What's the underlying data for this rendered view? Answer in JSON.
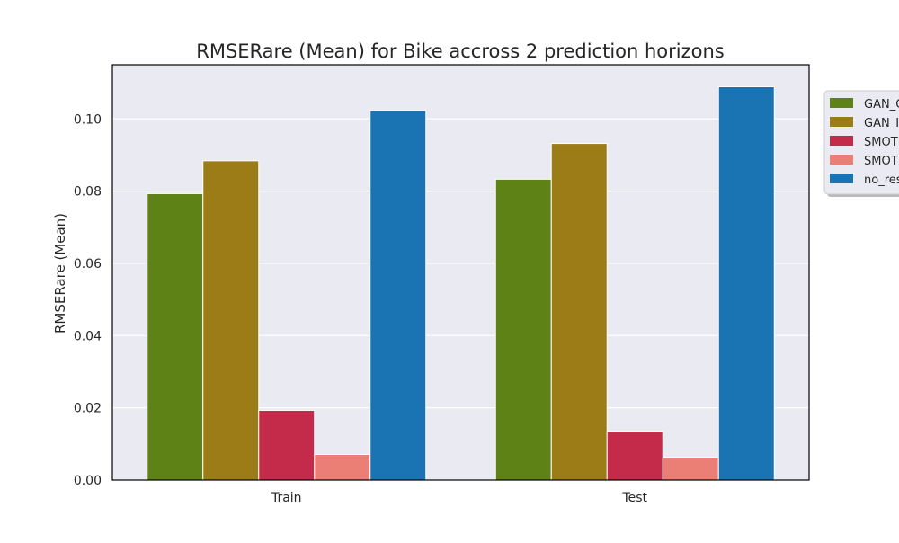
{
  "chart_data": {
    "type": "bar",
    "title": "RMSERare (Mean) for Bike accross 2 prediction horizons",
    "xlabel": "",
    "ylabel": "RMSERare (Mean)",
    "categories": [
      "Train",
      "Test"
    ],
    "ylim": [
      0,
      0.115
    ],
    "yticks": [
      "0.00",
      "0.02",
      "0.04",
      "0.06",
      "0.08",
      "0.10"
    ],
    "grid": true,
    "legend_position": "right, outside plot (clipped)",
    "series": [
      {
        "name": "GAN_C",
        "color": "#5f8216",
        "values": [
          0.0793,
          0.0833
        ]
      },
      {
        "name": "GAN_I",
        "color": "#9b7c17",
        "values": [
          0.0884,
          0.0932
        ]
      },
      {
        "name": "SMOT",
        "color": "#c42b4a",
        "values": [
          0.0193,
          0.0135
        ]
      },
      {
        "name": "SMOT",
        "color": "#ec7f75",
        "values": [
          0.0071,
          0.0062
        ]
      },
      {
        "name": "no_res",
        "color": "#1a74b4",
        "values": [
          0.1023,
          0.1089
        ]
      }
    ]
  },
  "style": {
    "plot_background": "#eaeaf2",
    "grid_color": "#ffffff",
    "axis_color": "#000000"
  }
}
